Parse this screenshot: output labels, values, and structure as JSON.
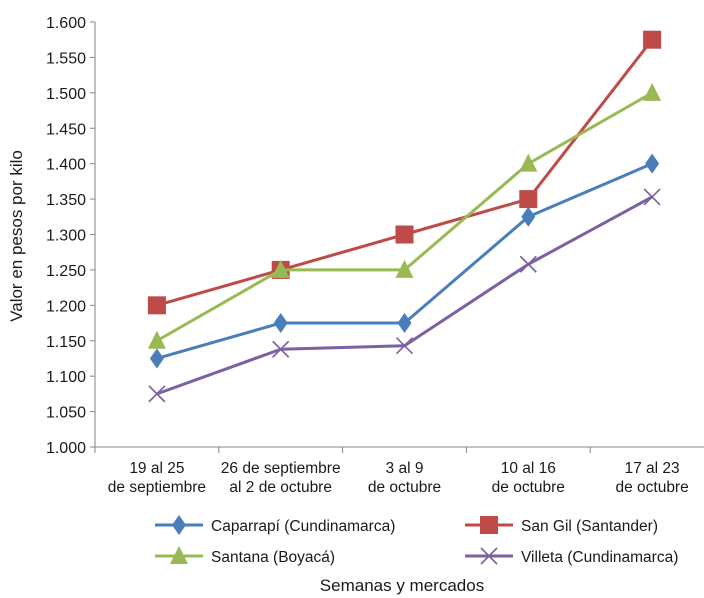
{
  "chart_data": {
    "type": "line",
    "title": "",
    "xlabel": "Semanas y mercados",
    "ylabel": "Valor en pesos por kilo",
    "ylim": [
      1000,
      1600
    ],
    "yticks": [
      1000,
      1050,
      1100,
      1150,
      1200,
      1250,
      1300,
      1350,
      1400,
      1450,
      1500,
      1550,
      1600
    ],
    "ytick_labels": [
      "1.000",
      "1.050",
      "1.100",
      "1.150",
      "1.200",
      "1.250",
      "1.300",
      "1.350",
      "1.400",
      "1.450",
      "1.500",
      "1.550",
      "1.600"
    ],
    "categories": [
      [
        "19 al 25",
        "de septiembre"
      ],
      [
        "26 de septiembre",
        "al 2 de octubre"
      ],
      [
        "3 al 9",
        "de octubre"
      ],
      [
        "10 al 16",
        "de octubre"
      ],
      [
        "17 al 23",
        "de octubre"
      ]
    ],
    "grid": false,
    "legend_position": "bottom",
    "series": [
      {
        "name": "Caparrapí (Cundinamarca)",
        "values": [
          1125,
          1175,
          1175,
          1325,
          1400
        ],
        "color": "#4a7ebb",
        "marker": "diamond"
      },
      {
        "name": "San Gil (Santander)",
        "values": [
          1200,
          1250,
          1300,
          1350,
          1575
        ],
        "color": "#be4b48",
        "marker": "square"
      },
      {
        "name": "Santana (Boyacá)",
        "values": [
          1150,
          1250,
          1250,
          1400,
          1500
        ],
        "color": "#98b954",
        "marker": "triangle"
      },
      {
        "name": "Villeta (Cundinamarca)",
        "values": [
          1075,
          1138,
          1143,
          1258,
          1353
        ],
        "color": "#7d60a0",
        "marker": "x"
      }
    ]
  }
}
